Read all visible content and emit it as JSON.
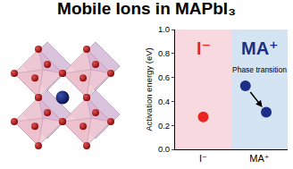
{
  "chart_data": {
    "type": "scatter",
    "title": "Mobile Ions in MAPbI₃",
    "y_label": "Activation energy (eV)",
    "xlim": [
      0,
      2
    ],
    "xticks": [
      {
        "value": 0.5,
        "label": "I⁻"
      },
      {
        "value": 1.5,
        "label": "MA⁺"
      }
    ],
    "ylim": [
      0,
      1
    ],
    "yticks": [
      {
        "value": 0,
        "label": "0.0"
      },
      {
        "value": 0.2,
        "label": "0.2"
      },
      {
        "value": 0.4,
        "label": "0.4"
      },
      {
        "value": 0.6,
        "label": "0.6"
      },
      {
        "value": 0.8,
        "label": "0.8"
      },
      {
        "value": 1,
        "label": "1.0"
      }
    ],
    "grid": false,
    "marker": "circle",
    "series": [
      {
        "name": "I⁻",
        "color": "#e8251f",
        "background": "#f9d9e0",
        "x": [
          0.5
        ],
        "values": [
          0.27
        ]
      },
      {
        "name": "MA⁺",
        "color": "#1c2e86",
        "background": "#d5e4f3",
        "x": [
          1.25,
          1.62
        ],
        "values": [
          0.53,
          0.31
        ]
      }
    ],
    "annotations": [
      {
        "text": "Phase transition"
      }
    ]
  }
}
